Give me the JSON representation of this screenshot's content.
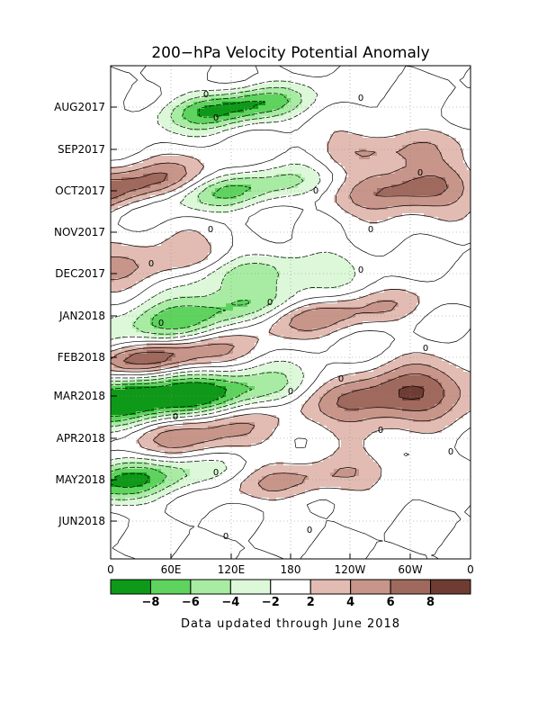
{
  "chart_data": {
    "type": "heatmap",
    "title": "200−hPa Velocity Potential Anomaly",
    "xlabel": "",
    "ylabel": "",
    "x_ticks": [
      "0",
      "60E",
      "120E",
      "180",
      "120W",
      "60W",
      "0"
    ],
    "y_ticks": [
      "AUG2017",
      "SEP2017",
      "OCT2017",
      "NOV2017",
      "DEC2017",
      "JAN2018",
      "FEB2018",
      "MAR2018",
      "APR2018",
      "MAY2018",
      "JUN2018"
    ],
    "contour_labels": [
      "0"
    ],
    "color_levels": [
      -10,
      -8,
      -6,
      -4,
      -2,
      2,
      4,
      6,
      8,
      10
    ],
    "colorbar_labels": [
      "−8",
      "−6",
      "−4",
      "−2",
      "2",
      "4",
      "6",
      "8"
    ],
    "colors": [
      "#0e9a18",
      "#5ed35e",
      "#a8eca3",
      "#dcf8d9",
      "#ffffff",
      "#e2bcb3",
      "#c79589",
      "#a0695e",
      "#6e3c33"
    ],
    "anomalies": [
      {
        "lon": 120,
        "month": "Aug 2017",
        "value": -9
      },
      {
        "lon": 270,
        "month": "Sep 2017",
        "value": 5
      },
      {
        "lon": 115,
        "month": "Oct 2017",
        "value": -8
      },
      {
        "lon": 20,
        "month": "Oct 2017",
        "value": 9
      },
      {
        "lon": 300,
        "month": "Oct 2017",
        "value": 8
      },
      {
        "lon": 50,
        "month": "Dec 2017",
        "value": 8
      },
      {
        "lon": 115,
        "month": "Dec 2017",
        "value": -8
      },
      {
        "lon": 200,
        "month": "Jan 2018",
        "value": 6
      },
      {
        "lon": 85,
        "month": "Jan 2018",
        "value": -8
      },
      {
        "lon": 40,
        "month": "Feb 2018",
        "value": 9
      },
      {
        "lon": 285,
        "month": "Mar 2018",
        "value": 9
      },
      {
        "lon": 10,
        "month": "Mar 2018",
        "value": -9
      },
      {
        "lon": 110,
        "month": "Mar 2018",
        "value": -7
      },
      {
        "lon": 90,
        "month": "Apr 2018",
        "value": 6
      },
      {
        "lon": 20,
        "month": "May 2018",
        "value": -8
      },
      {
        "lon": 200,
        "month": "May 2018",
        "value": 5
      }
    ]
  },
  "footer_note": "Data updated through June 2018"
}
